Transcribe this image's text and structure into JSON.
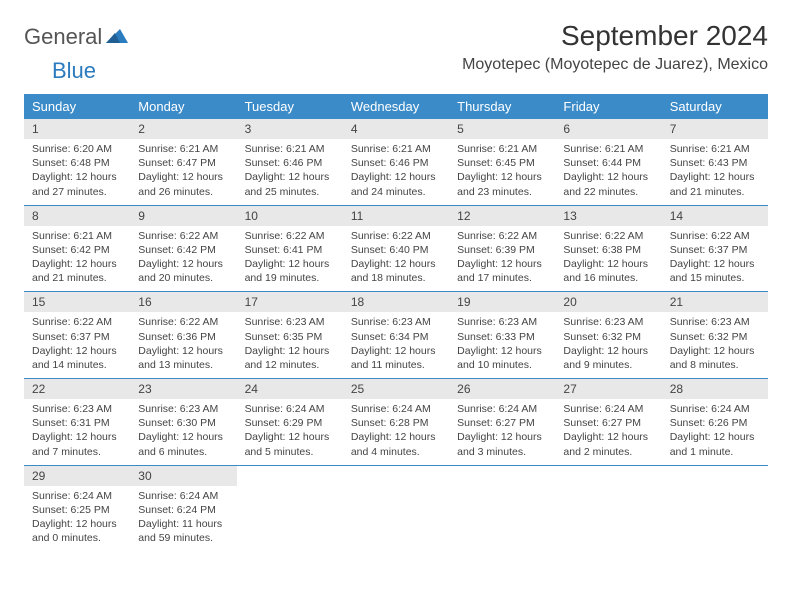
{
  "logo": {
    "word1": "General",
    "word2": "Blue"
  },
  "title": "September 2024",
  "location": "Moyotepec (Moyotepec de Juarez), Mexico",
  "colors": {
    "header_bg": "#3b8bc9",
    "header_text": "#ffffff",
    "daynum_bg": "#e8e8e8",
    "rule": "#3b8bc9",
    "body_text": "#444444",
    "logo_gray": "#555555",
    "logo_blue": "#2b7bbf",
    "page_bg": "#ffffff"
  },
  "day_names": [
    "Sunday",
    "Monday",
    "Tuesday",
    "Wednesday",
    "Thursday",
    "Friday",
    "Saturday"
  ],
  "weeks": [
    [
      {
        "n": "1",
        "sr": "Sunrise: 6:20 AM",
        "ss": "Sunset: 6:48 PM",
        "d1": "Daylight: 12 hours",
        "d2": "and 27 minutes."
      },
      {
        "n": "2",
        "sr": "Sunrise: 6:21 AM",
        "ss": "Sunset: 6:47 PM",
        "d1": "Daylight: 12 hours",
        "d2": "and 26 minutes."
      },
      {
        "n": "3",
        "sr": "Sunrise: 6:21 AM",
        "ss": "Sunset: 6:46 PM",
        "d1": "Daylight: 12 hours",
        "d2": "and 25 minutes."
      },
      {
        "n": "4",
        "sr": "Sunrise: 6:21 AM",
        "ss": "Sunset: 6:46 PM",
        "d1": "Daylight: 12 hours",
        "d2": "and 24 minutes."
      },
      {
        "n": "5",
        "sr": "Sunrise: 6:21 AM",
        "ss": "Sunset: 6:45 PM",
        "d1": "Daylight: 12 hours",
        "d2": "and 23 minutes."
      },
      {
        "n": "6",
        "sr": "Sunrise: 6:21 AM",
        "ss": "Sunset: 6:44 PM",
        "d1": "Daylight: 12 hours",
        "d2": "and 22 minutes."
      },
      {
        "n": "7",
        "sr": "Sunrise: 6:21 AM",
        "ss": "Sunset: 6:43 PM",
        "d1": "Daylight: 12 hours",
        "d2": "and 21 minutes."
      }
    ],
    [
      {
        "n": "8",
        "sr": "Sunrise: 6:21 AM",
        "ss": "Sunset: 6:42 PM",
        "d1": "Daylight: 12 hours",
        "d2": "and 21 minutes."
      },
      {
        "n": "9",
        "sr": "Sunrise: 6:22 AM",
        "ss": "Sunset: 6:42 PM",
        "d1": "Daylight: 12 hours",
        "d2": "and 20 minutes."
      },
      {
        "n": "10",
        "sr": "Sunrise: 6:22 AM",
        "ss": "Sunset: 6:41 PM",
        "d1": "Daylight: 12 hours",
        "d2": "and 19 minutes."
      },
      {
        "n": "11",
        "sr": "Sunrise: 6:22 AM",
        "ss": "Sunset: 6:40 PM",
        "d1": "Daylight: 12 hours",
        "d2": "and 18 minutes."
      },
      {
        "n": "12",
        "sr": "Sunrise: 6:22 AM",
        "ss": "Sunset: 6:39 PM",
        "d1": "Daylight: 12 hours",
        "d2": "and 17 minutes."
      },
      {
        "n": "13",
        "sr": "Sunrise: 6:22 AM",
        "ss": "Sunset: 6:38 PM",
        "d1": "Daylight: 12 hours",
        "d2": "and 16 minutes."
      },
      {
        "n": "14",
        "sr": "Sunrise: 6:22 AM",
        "ss": "Sunset: 6:37 PM",
        "d1": "Daylight: 12 hours",
        "d2": "and 15 minutes."
      }
    ],
    [
      {
        "n": "15",
        "sr": "Sunrise: 6:22 AM",
        "ss": "Sunset: 6:37 PM",
        "d1": "Daylight: 12 hours",
        "d2": "and 14 minutes."
      },
      {
        "n": "16",
        "sr": "Sunrise: 6:22 AM",
        "ss": "Sunset: 6:36 PM",
        "d1": "Daylight: 12 hours",
        "d2": "and 13 minutes."
      },
      {
        "n": "17",
        "sr": "Sunrise: 6:23 AM",
        "ss": "Sunset: 6:35 PM",
        "d1": "Daylight: 12 hours",
        "d2": "and 12 minutes."
      },
      {
        "n": "18",
        "sr": "Sunrise: 6:23 AM",
        "ss": "Sunset: 6:34 PM",
        "d1": "Daylight: 12 hours",
        "d2": "and 11 minutes."
      },
      {
        "n": "19",
        "sr": "Sunrise: 6:23 AM",
        "ss": "Sunset: 6:33 PM",
        "d1": "Daylight: 12 hours",
        "d2": "and 10 minutes."
      },
      {
        "n": "20",
        "sr": "Sunrise: 6:23 AM",
        "ss": "Sunset: 6:32 PM",
        "d1": "Daylight: 12 hours",
        "d2": "and 9 minutes."
      },
      {
        "n": "21",
        "sr": "Sunrise: 6:23 AM",
        "ss": "Sunset: 6:32 PM",
        "d1": "Daylight: 12 hours",
        "d2": "and 8 minutes."
      }
    ],
    [
      {
        "n": "22",
        "sr": "Sunrise: 6:23 AM",
        "ss": "Sunset: 6:31 PM",
        "d1": "Daylight: 12 hours",
        "d2": "and 7 minutes."
      },
      {
        "n": "23",
        "sr": "Sunrise: 6:23 AM",
        "ss": "Sunset: 6:30 PM",
        "d1": "Daylight: 12 hours",
        "d2": "and 6 minutes."
      },
      {
        "n": "24",
        "sr": "Sunrise: 6:24 AM",
        "ss": "Sunset: 6:29 PM",
        "d1": "Daylight: 12 hours",
        "d2": "and 5 minutes."
      },
      {
        "n": "25",
        "sr": "Sunrise: 6:24 AM",
        "ss": "Sunset: 6:28 PM",
        "d1": "Daylight: 12 hours",
        "d2": "and 4 minutes."
      },
      {
        "n": "26",
        "sr": "Sunrise: 6:24 AM",
        "ss": "Sunset: 6:27 PM",
        "d1": "Daylight: 12 hours",
        "d2": "and 3 minutes."
      },
      {
        "n": "27",
        "sr": "Sunrise: 6:24 AM",
        "ss": "Sunset: 6:27 PM",
        "d1": "Daylight: 12 hours",
        "d2": "and 2 minutes."
      },
      {
        "n": "28",
        "sr": "Sunrise: 6:24 AM",
        "ss": "Sunset: 6:26 PM",
        "d1": "Daylight: 12 hours",
        "d2": "and 1 minute."
      }
    ],
    [
      {
        "n": "29",
        "sr": "Sunrise: 6:24 AM",
        "ss": "Sunset: 6:25 PM",
        "d1": "Daylight: 12 hours",
        "d2": "and 0 minutes."
      },
      {
        "n": "30",
        "sr": "Sunrise: 6:24 AM",
        "ss": "Sunset: 6:24 PM",
        "d1": "Daylight: 11 hours",
        "d2": "and 59 minutes."
      },
      null,
      null,
      null,
      null,
      null
    ]
  ]
}
